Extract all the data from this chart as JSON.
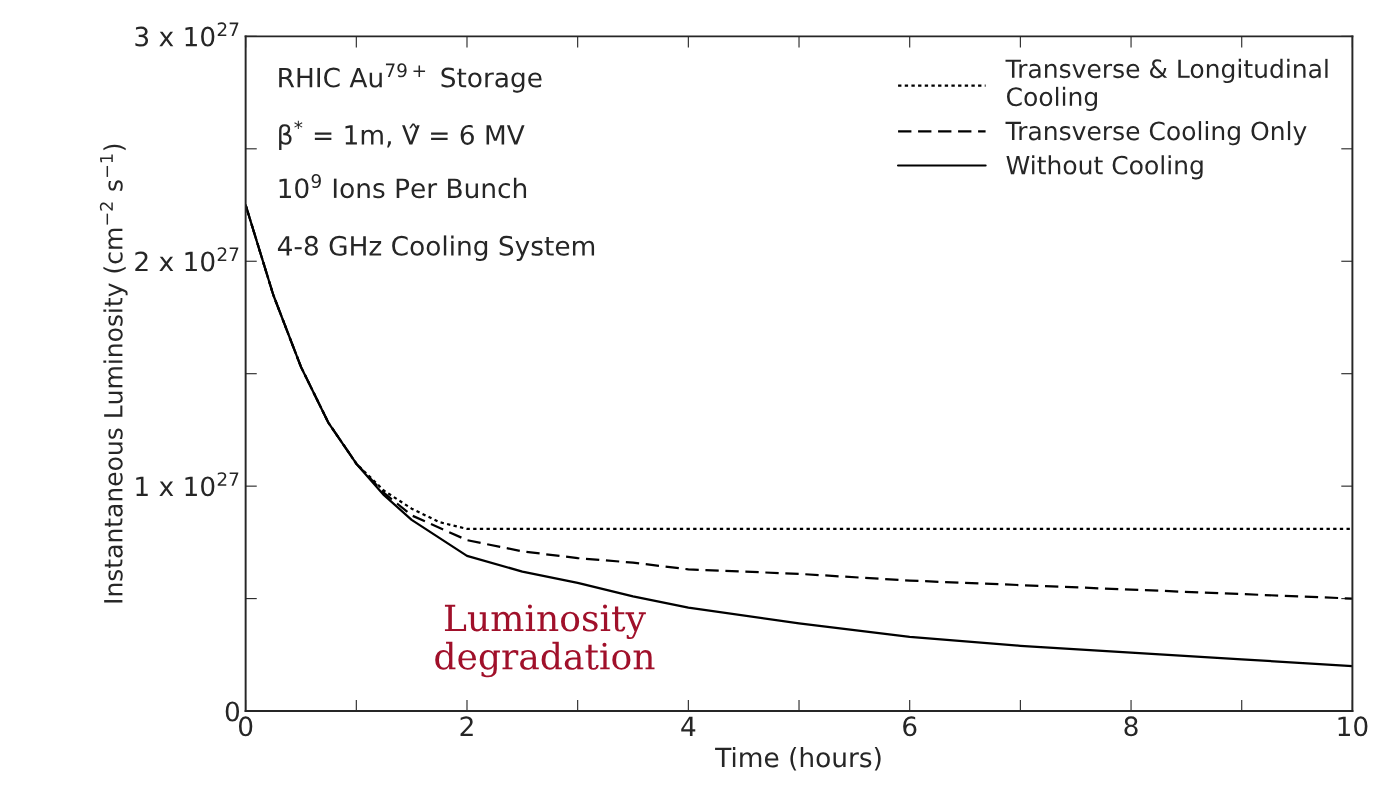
{
  "chart_data": {
    "type": "line",
    "xlabel": "Time (hours)",
    "ylabel": "Instantaneous Luminosity (cm$^{−2}$ s$^{−1}$)",
    "xlim": [
      0,
      10
    ],
    "ylim": [
      0,
      3e+27
    ],
    "xticks": [
      0,
      {
        "value": 1,
        "label": null
      },
      2,
      {
        "value": 3,
        "label": null
      },
      4,
      {
        "value": 5,
        "label": null
      },
      6,
      {
        "value": 7,
        "label": null
      },
      8,
      {
        "value": 9,
        "label": null
      },
      10
    ],
    "yticks": [
      0,
      {
        "value": 5e+26,
        "label": null
      },
      {
        "value": 1e+27,
        "label": "1 x 10$^{27}$"
      },
      {
        "value": 1.5e+27,
        "label": null
      },
      {
        "value": 2e+27,
        "label": "2 x 10$^{27}$"
      },
      {
        "value": 2.5e+27,
        "label": null
      },
      {
        "value": 3e+27,
        "label": "3 x 10$^{27}$"
      }
    ],
    "grid": false,
    "legend": "top right",
    "marker": "none",
    "series": [
      {
        "name": "Transverse & Longitudinal\nCooling",
        "color": "#000000",
        "line_style": "dotted",
        "x": [
          0,
          0.25,
          0.5,
          0.75,
          1,
          1.25,
          1.5,
          1.75,
          2,
          3,
          4,
          5,
          6,
          7,
          8,
          9,
          10
        ],
        "values": [
          2.25e+27,
          1.85e+27,
          1.53e+27,
          1.28e+27,
          1.1e+27,
          9.8e+26,
          9e+26,
          8.4e+26,
          8.1e+26,
          8.1e+26,
          8.1e+26,
          8.1e+26,
          8.1e+26,
          8.1e+26,
          8.1e+26,
          8.1e+26,
          8.1e+26
        ]
      },
      {
        "name": "Transverse Cooling Only",
        "color": "#000000",
        "line_style": "dashed",
        "x": [
          0,
          0.25,
          0.5,
          0.75,
          1,
          1.25,
          1.5,
          2,
          2.5,
          3,
          3.5,
          4,
          5,
          6,
          7,
          8,
          9,
          10
        ],
        "values": [
          2.25e+27,
          1.85e+27,
          1.53e+27,
          1.28e+27,
          1.1e+27,
          9.7e+26,
          8.7e+26,
          7.6e+26,
          7.1e+26,
          6.8e+26,
          6.6e+26,
          6.3e+26,
          6.1e+26,
          5.8e+26,
          5.6e+26,
          5.4e+26,
          5.2e+26,
          5e+26
        ]
      },
      {
        "name": "Without Cooling",
        "color": "#000000",
        "line_style": "solid",
        "x": [
          0,
          0.25,
          0.5,
          0.75,
          1,
          1.25,
          1.5,
          2,
          2.5,
          3,
          3.5,
          4,
          5,
          6,
          7,
          8,
          9,
          10
        ],
        "values": [
          2.25e+27,
          1.85e+27,
          1.53e+27,
          1.28e+27,
          1.1e+27,
          9.6e+26,
          8.5e+26,
          6.9e+26,
          6.2e+26,
          5.7e+26,
          5.1e+26,
          4.6e+26,
          3.9e+26,
          3.3e+26,
          2.9e+26,
          2.6e+26,
          2.3e+26,
          2e+26
        ]
      }
    ],
    "annotations": [
      "RHIC Au$^{79+}$ Storage",
      "β$^{*}$ = 1m, V̂ = 6 MV",
      "10$^{9}$ Ions Per Bunch",
      "4-8 GHz Cooling System",
      "Luminosity\ndegradation"
    ]
  }
}
